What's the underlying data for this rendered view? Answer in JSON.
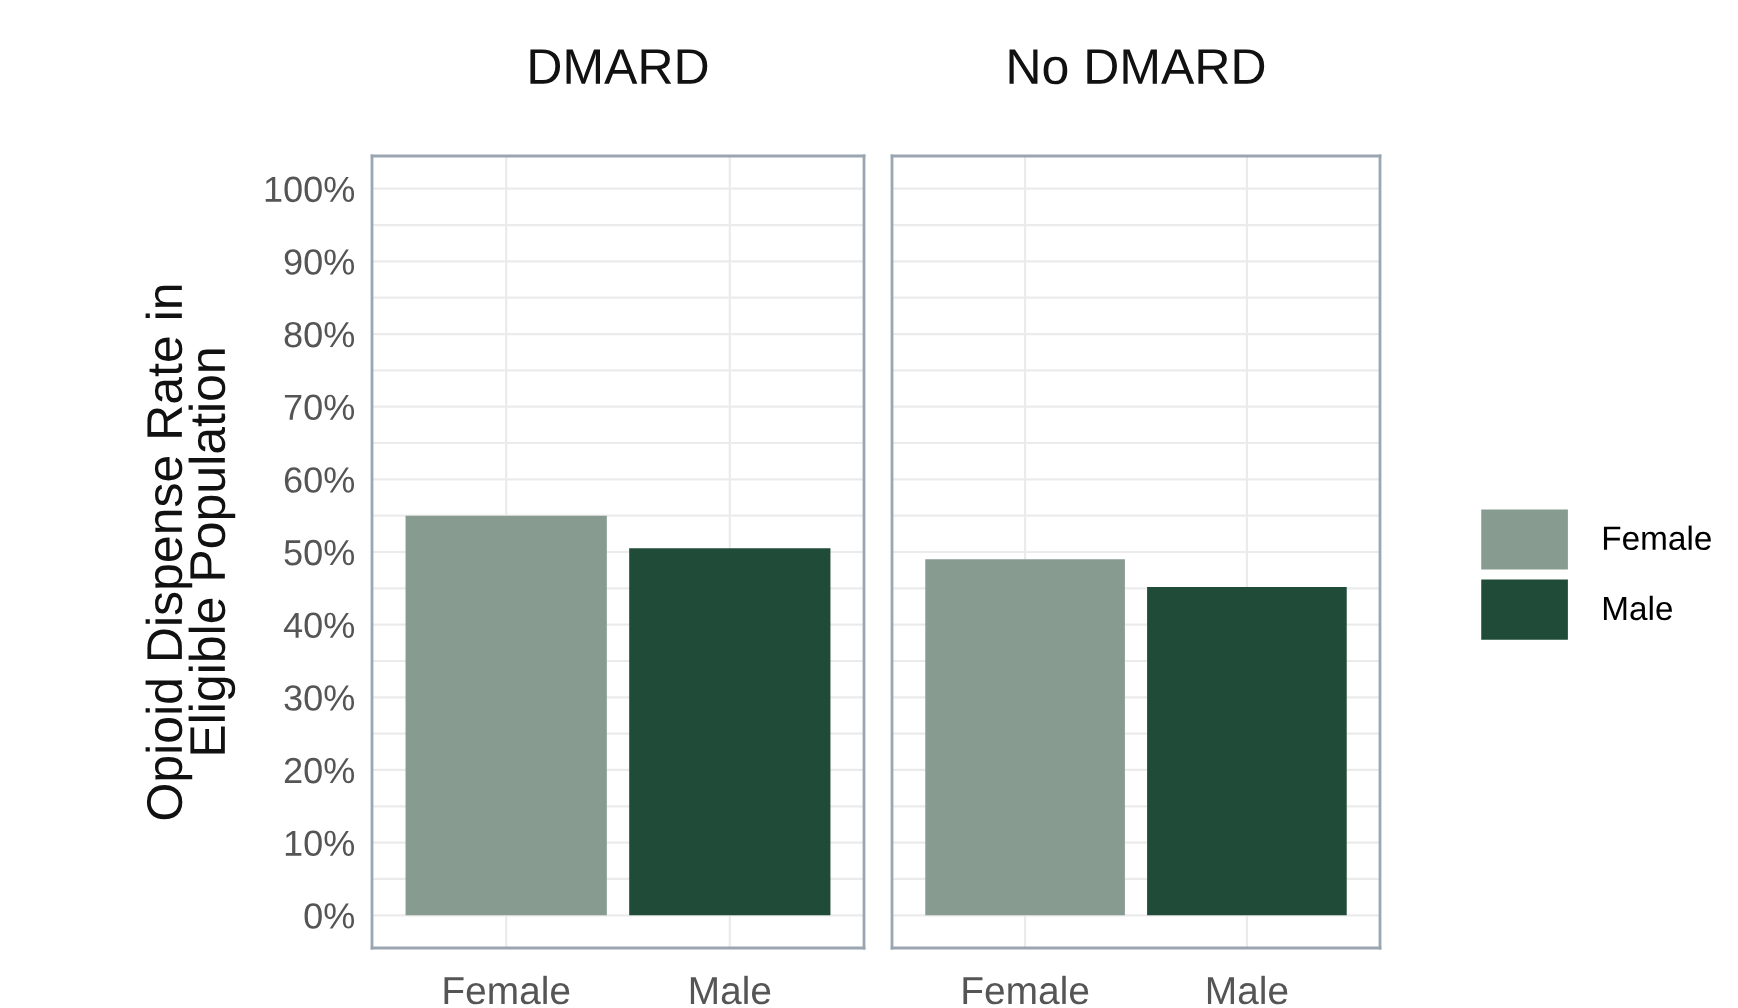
{
  "chart_data": [
    {
      "type": "bar",
      "title": "DMARD",
      "ylabel": "Opioid Dispense Rate in\nEligible Population",
      "categories": [
        "Female",
        "Male"
      ],
      "series": [
        {
          "name": "Female",
          "color": "#879b91",
          "values": [
            55,
            null
          ]
        },
        {
          "name": "Male",
          "color": "#214b39",
          "values": [
            null,
            50.5
          ]
        }
      ],
      "ylim": [
        -4.5,
        104.5
      ],
      "yticks": [
        {
          "value": 0,
          "label": "0%"
        },
        {
          "value": 5,
          "label": null
        },
        {
          "value": 10,
          "label": "10%"
        },
        {
          "value": 15,
          "label": null
        },
        {
          "value": 20,
          "label": "20%"
        },
        {
          "value": 25,
          "label": null
        },
        {
          "value": 30,
          "label": "30%"
        },
        {
          "value": 35,
          "label": null
        },
        {
          "value": 40,
          "label": "40%"
        },
        {
          "value": 45,
          "label": null
        },
        {
          "value": 50,
          "label": "50%"
        },
        {
          "value": 55,
          "label": null
        },
        {
          "value": 60,
          "label": "60%"
        },
        {
          "value": 65,
          "label": null
        },
        {
          "value": 70,
          "label": "70%"
        },
        {
          "value": 75,
          "label": null
        },
        {
          "value": 80,
          "label": "80%"
        },
        {
          "value": 85,
          "label": null
        },
        {
          "value": 90,
          "label": "90%"
        },
        {
          "value": 95,
          "label": null
        },
        {
          "value": 100,
          "label": "100%"
        }
      ],
      "grid": true,
      "legend": "right"
    },
    {
      "type": "bar",
      "title": "No DMARD",
      "categories": [
        "Female",
        "Male"
      ],
      "series": [
        {
          "color": "#879b91",
          "values": [
            49,
            null
          ]
        },
        {
          "color": "#214b39",
          "values": [
            null,
            45.2
          ]
        }
      ],
      "ylim": [
        -4.5,
        104.5
      ],
      "yticks": [
        {
          "value": 0,
          "label": null
        },
        {
          "value": 5,
          "label": null
        },
        {
          "value": 10,
          "label": null
        },
        {
          "value": 15,
          "label": null
        },
        {
          "value": 20,
          "label": null
        },
        {
          "value": 25,
          "label": null
        },
        {
          "value": 30,
          "label": null
        },
        {
          "value": 35,
          "label": null
        },
        {
          "value": 40,
          "label": null
        },
        {
          "value": 45,
          "label": null
        },
        {
          "value": 50,
          "label": null
        },
        {
          "value": 55,
          "label": null
        },
        {
          "value": 60,
          "label": null
        },
        {
          "value": 65,
          "label": null
        },
        {
          "value": 70,
          "label": null
        },
        {
          "value": 75,
          "label": null
        },
        {
          "value": 80,
          "label": null
        },
        {
          "value": 85,
          "label": null
        },
        {
          "value": 90,
          "label": null
        },
        {
          "value": 95,
          "label": null
        },
        {
          "value": 100,
          "label": null
        }
      ],
      "grid": true,
      "tick_labels": "x"
    }
  ]
}
